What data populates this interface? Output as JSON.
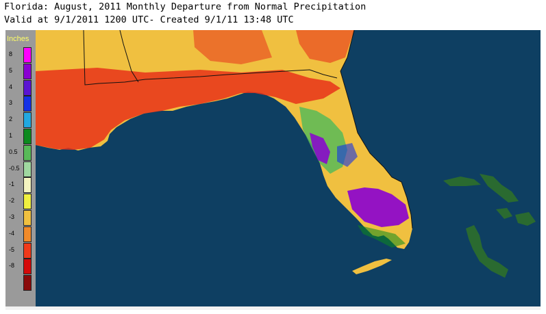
{
  "header": {
    "title_line1": "Florida: August, 2011 Monthly Departure from Normal Precipitation",
    "title_line2": "Valid at 9/1/2011 1200 UTC- Created 9/1/11 13:48 UTC"
  },
  "legend": {
    "title": "Inches",
    "items": [
      {
        "label": "8",
        "color": "#ff00ff"
      },
      {
        "label": "5",
        "color": "#8a00d2"
      },
      {
        "label": "4",
        "color": "#5a14d2"
      },
      {
        "label": "3",
        "color": "#1432e6"
      },
      {
        "label": "2",
        "color": "#22a8e0"
      },
      {
        "label": "1",
        "color": "#0c8a1e"
      },
      {
        "label": "0.5",
        "color": "#58ba58"
      },
      {
        "label": "-0.5",
        "color": "#a0d8a0"
      },
      {
        "label": "-1",
        "color": "#f4f4c0"
      },
      {
        "label": "-2",
        "color": "#f0f040"
      },
      {
        "label": "-3",
        "color": "#f0c040"
      },
      {
        "label": "-4",
        "color": "#f08a2a"
      },
      {
        "label": "-5",
        "color": "#f03a1a"
      },
      {
        "label": "-8",
        "color": "#d40a0a"
      },
      {
        "label": "",
        "color": "#8a0a0a"
      }
    ]
  },
  "map": {
    "ocean_color": "#0e3f62",
    "land_default": "#f0c040",
    "border_color": "#111111",
    "bahamas_color": "#2a6a30"
  }
}
